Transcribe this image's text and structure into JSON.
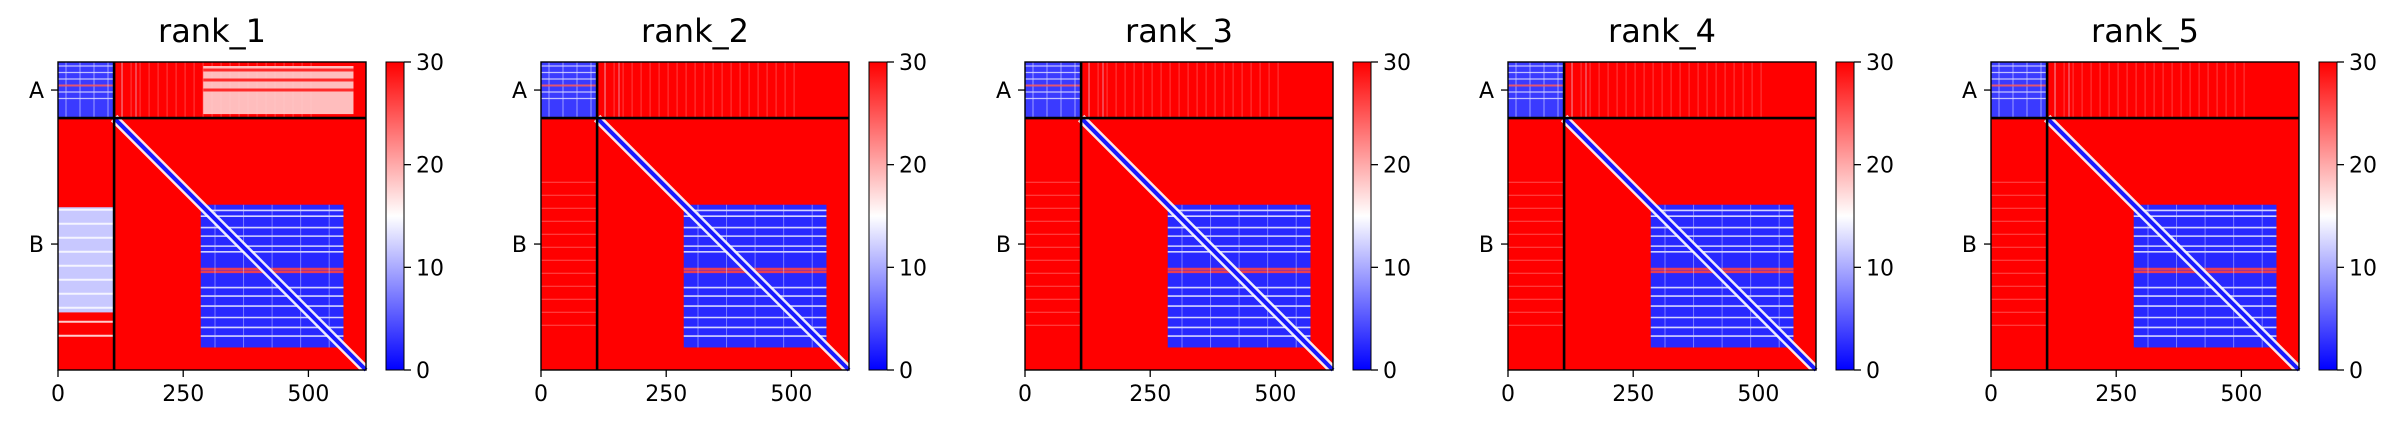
{
  "chart_data": [
    {
      "type": "heatmap",
      "title": "rank_1",
      "x_ticks": [
        0,
        250,
        500
      ],
      "xlim": [
        0,
        615
      ],
      "chain_boundary": 112,
      "y_chain_labels": [
        "A",
        "B"
      ],
      "colorbar": {
        "min": 0,
        "max": 30,
        "ticks": [
          0,
          10,
          20,
          30
        ],
        "colors": [
          "#0000ff",
          "#ffffff",
          "#ff0000"
        ]
      }
    },
    {
      "type": "heatmap",
      "title": "rank_2",
      "x_ticks": [
        0,
        250,
        500
      ],
      "xlim": [
        0,
        615
      ],
      "chain_boundary": 112,
      "y_chain_labels": [
        "A",
        "B"
      ],
      "colorbar": {
        "min": 0,
        "max": 30,
        "ticks": [
          0,
          10,
          20,
          30
        ],
        "colors": [
          "#0000ff",
          "#ffffff",
          "#ff0000"
        ]
      }
    },
    {
      "type": "heatmap",
      "title": "rank_3",
      "x_ticks": [
        0,
        250,
        500
      ],
      "xlim": [
        0,
        615
      ],
      "chain_boundary": 112,
      "y_chain_labels": [
        "A",
        "B"
      ],
      "colorbar": {
        "min": 0,
        "max": 30,
        "ticks": [
          0,
          10,
          20,
          30
        ],
        "colors": [
          "#0000ff",
          "#ffffff",
          "#ff0000"
        ]
      }
    },
    {
      "type": "heatmap",
      "title": "rank_4",
      "x_ticks": [
        0,
        250,
        500
      ],
      "xlim": [
        0,
        615
      ],
      "chain_boundary": 112,
      "y_chain_labels": [
        "A",
        "B"
      ],
      "colorbar": {
        "min": 0,
        "max": 30,
        "ticks": [
          0,
          10,
          20,
          30
        ],
        "colors": [
          "#0000ff",
          "#ffffff",
          "#ff0000"
        ]
      }
    },
    {
      "type": "heatmap",
      "title": "rank_5",
      "x_ticks": [
        0,
        250,
        500
      ],
      "xlim": [
        0,
        615
      ],
      "chain_boundary": 112,
      "y_chain_labels": [
        "A",
        "B"
      ],
      "colorbar": {
        "min": 0,
        "max": 30,
        "ticks": [
          0,
          10,
          20,
          30
        ],
        "colors": [
          "#0000ff",
          "#ffffff",
          "#ff0000"
        ]
      }
    }
  ]
}
